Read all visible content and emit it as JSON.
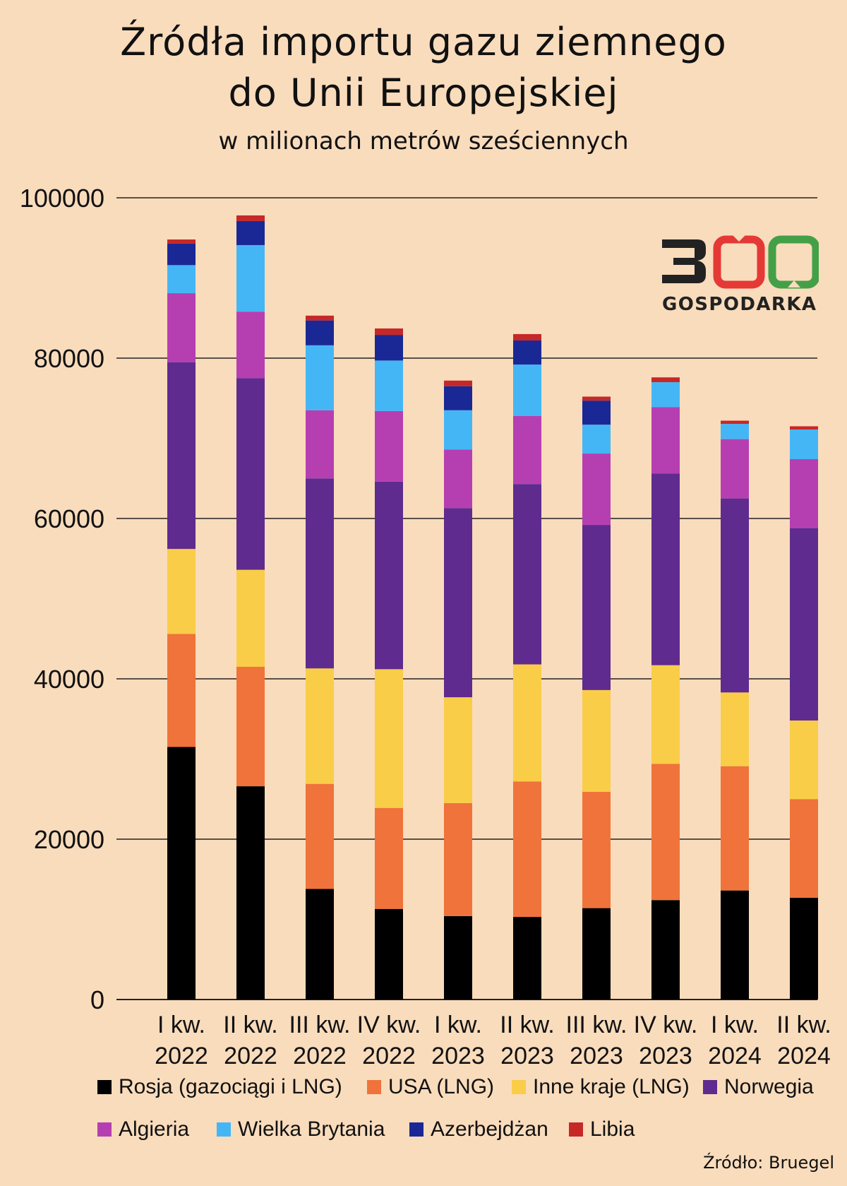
{
  "title_line1": "Źródła importu gazu ziemnego",
  "title_line2": "do Unii Europejskiej",
  "subtitle": "w milionach metrów sześciennych",
  "source": "Źródło: Bruegel",
  "logo": {
    "number": "300",
    "text": "GOSPODARKA",
    "colors": [
      "#222222",
      "#e53935",
      "#43a047"
    ]
  },
  "chart_data": {
    "type": "bar",
    "stacked": true,
    "ylim": [
      0,
      100000
    ],
    "yticks": [
      0,
      20000,
      40000,
      60000,
      80000,
      100000
    ],
    "grid": true,
    "legend_position": "bottom",
    "categories": [
      "I kw. 2022",
      "II kw. 2022",
      "III kw. 2022",
      "IV kw. 2022",
      "I kw. 2023",
      "II kw. 2023",
      "III kw. 2023",
      "IV kw. 2023",
      "I kw. 2024",
      "II kw. 2024"
    ],
    "category_lines": [
      [
        "I kw.",
        "2022"
      ],
      [
        "II kw.",
        "2022"
      ],
      [
        "III kw.",
        "2022"
      ],
      [
        "IV kw.",
        "2022"
      ],
      [
        "I kw.",
        "2023"
      ],
      [
        "II kw.",
        "2023"
      ],
      [
        "III kw.",
        "2023"
      ],
      [
        "IV kw.",
        "2023"
      ],
      [
        "I kw.",
        "2024"
      ],
      [
        "II kw.",
        "2024"
      ]
    ],
    "series": [
      {
        "name": "Rosja (gazociągi i LNG)",
        "color": "#000000",
        "values": [
          31500,
          26600,
          13800,
          11300,
          10400,
          10300,
          11400,
          12400,
          13600,
          12700
        ]
      },
      {
        "name": "USA (LNG)",
        "color": "#ef733a",
        "values": [
          14100,
          14900,
          13100,
          12600,
          14100,
          16900,
          14500,
          17000,
          15500,
          12300
        ]
      },
      {
        "name": "Inne kraje (LNG)",
        "color": "#f9cd48",
        "values": [
          10600,
          12100,
          14400,
          17300,
          13200,
          14600,
          12700,
          12300,
          9200,
          9800
        ]
      },
      {
        "name": "Norwegia",
        "color": "#5f2b8f",
        "values": [
          23300,
          23900,
          23700,
          23400,
          23600,
          22500,
          20600,
          23900,
          24200,
          24000
        ]
      },
      {
        "name": "Algieria",
        "color": "#b53fb1",
        "values": [
          8600,
          8300,
          8500,
          8800,
          7300,
          8500,
          8900,
          8300,
          7400,
          8600
        ]
      },
      {
        "name": "Wielka Brytania",
        "color": "#45b6f5",
        "values": [
          3500,
          8300,
          8100,
          6300,
          4900,
          6400,
          3600,
          3100,
          1900,
          3700
        ]
      },
      {
        "name": "Azerbejdżan",
        "color": "#1a2896",
        "values": [
          2700,
          3000,
          3100,
          3200,
          3000,
          3000,
          3000,
          0,
          0,
          0
        ]
      },
      {
        "name": "Libia",
        "color": "#c62828",
        "values": [
          500,
          700,
          600,
          800,
          700,
          800,
          500,
          600,
          400,
          400
        ]
      }
    ]
  }
}
